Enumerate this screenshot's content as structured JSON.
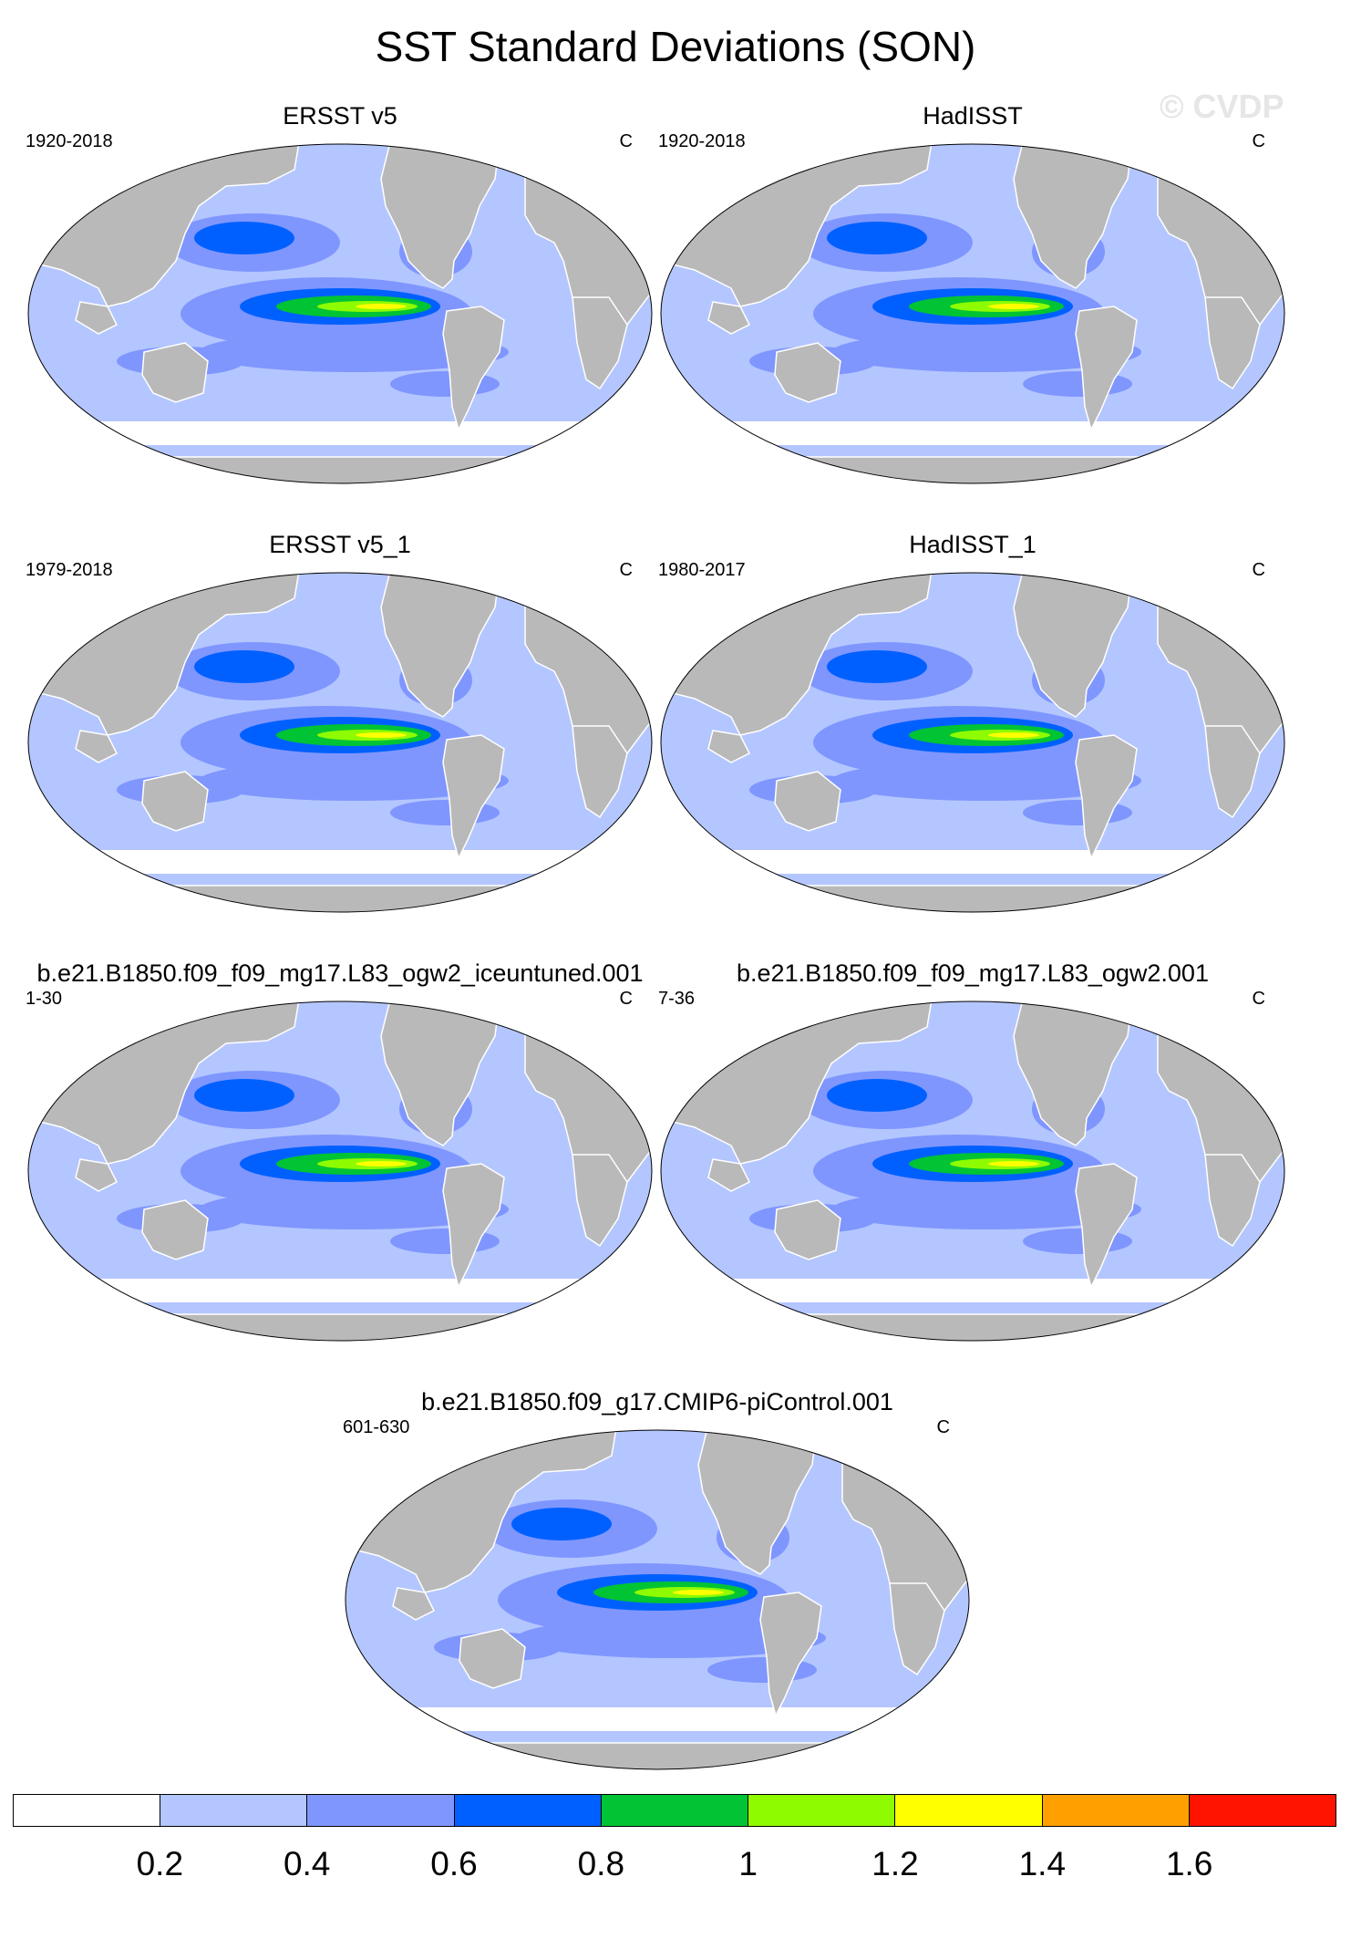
{
  "title": "SST Standard Deviations (SON)",
  "watermark": "© CVDP",
  "panels": [
    {
      "title": "ERSST v5",
      "period": "1920-2018",
      "unit": "C"
    },
    {
      "title": "HadISST",
      "period": "1920-2018",
      "unit": "C"
    },
    {
      "title": "ERSST v5_1",
      "period": "1979-2018",
      "unit": "C"
    },
    {
      "title": "HadISST_1",
      "period": "1980-2017",
      "unit": "C"
    },
    {
      "title": "b.e21.B1850.f09_f09_mg17.L83_ogw2_iceuntuned.001",
      "period": "1-30",
      "unit": "C"
    },
    {
      "title": "b.e21.B1850.f09_f09_mg17.L83_ogw2.001",
      "period": "7-36",
      "unit": "C"
    },
    {
      "title": "b.e21.B1850.f09_g17.CMIP6-piControl.001",
      "period": "601-630",
      "unit": "C"
    }
  ],
  "map_colors": {
    "ocean_base": "#b4c6ff",
    "land": "#b9b9b9",
    "coast": "#ffffff"
  },
  "colorbar": {
    "colors": [
      "#ffffff",
      "#b4c6ff",
      "#7f96ff",
      "#0060ff",
      "#00c434",
      "#8ffb00",
      "#ffff00",
      "#ffa000",
      "#ff1400"
    ],
    "labels": [
      "0.2",
      "0.4",
      "0.6",
      "0.8",
      "1",
      "1.2",
      "1.4",
      "1.6"
    ]
  }
}
